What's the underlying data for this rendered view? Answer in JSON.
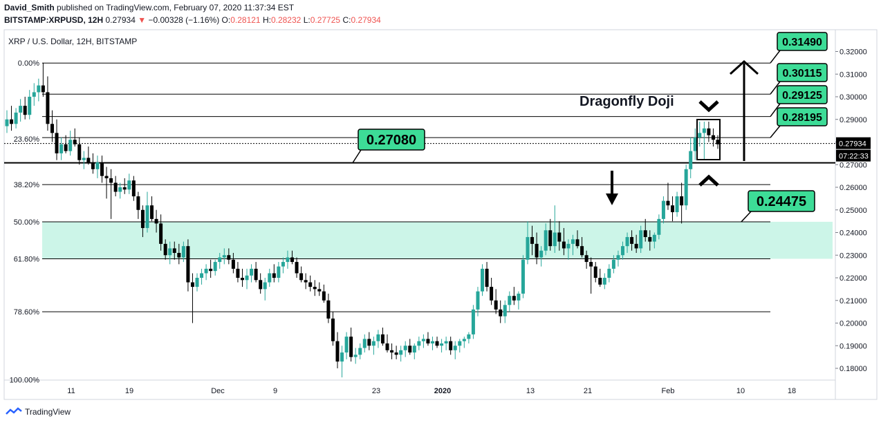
{
  "header": {
    "author": "David_Smith",
    "published": "published on TradingView.com, February 07, 2020 11:37:34 EST",
    "symbol": "BITSTAMP:XRPUSD, 12H",
    "last": "0.27934",
    "change_arrow": "▼",
    "change": "−0.00328 (−1.16%)",
    "o_label": "O:",
    "o": "0.28121",
    "h_label": "H:",
    "h": "0.28232",
    "l_label": "L:",
    "l": "0.27725",
    "c_label": "C:",
    "c": "0.27934"
  },
  "footer": {
    "brand": "TradingView",
    "logo_icon": "tradingview-logo-icon"
  },
  "chart_data": {
    "type": "candlestick",
    "title": "XRP / U.S. Dollar, 12H, BITSTAMP",
    "ylim": [
      0.175,
      0.3265
    ],
    "y_ticks": [
      "0.32000",
      "0.31000",
      "0.30000",
      "0.29000",
      "0.28000",
      "0.27000",
      "0.26000",
      "0.25000",
      "0.24000",
      "0.23000",
      "0.22000",
      "0.21000",
      "0.20000",
      "0.19000",
      "0.18000"
    ],
    "x_ticks": [
      "11",
      "19",
      "Dec",
      "9",
      "23",
      "2020",
      "13",
      "21",
      "Feb",
      "10",
      "18"
    ],
    "fib_levels": [
      {
        "label": "0.00%",
        "price": 0.3149
      },
      {
        "label": "23.60%",
        "price": 0.2813
      },
      {
        "label": "38.20%",
        "price": 0.2612
      },
      {
        "label": "50.00%",
        "price": 0.2448
      },
      {
        "label": "61.80%",
        "price": 0.2284
      },
      {
        "label": "78.60%",
        "price": 0.205
      },
      {
        "label": "100.00%",
        "price": 0.175
      }
    ],
    "horizontal_lines": [
      0.3149,
      0.30115,
      0.29125,
      0.28195,
      0.2708,
      0.2612,
      0.24475,
      0.2284,
      0.205
    ],
    "current_price_label": "0.27934",
    "countdown_label": "07:22:33",
    "support_zone": [
      0.2284,
      0.24475
    ],
    "price_labels": [
      "0.31490",
      "0.30115",
      "0.29125",
      "0.28195",
      "0.27080",
      "0.24475"
    ],
    "annotation": "Dragonfly Doji",
    "colors": {
      "up": "#26a69a",
      "down": "#000000",
      "zone": "#ccf5e8",
      "label_bg": "#3ddc97"
    },
    "ohlc": [
      [
        0.287,
        0.294,
        0.284,
        0.29
      ],
      [
        0.29,
        0.296,
        0.285,
        0.288
      ],
      [
        0.288,
        0.295,
        0.286,
        0.293
      ],
      [
        0.293,
        0.299,
        0.289,
        0.296
      ],
      [
        0.296,
        0.3,
        0.29,
        0.292
      ],
      [
        0.292,
        0.303,
        0.29,
        0.3
      ],
      [
        0.3,
        0.306,
        0.296,
        0.302
      ],
      [
        0.302,
        0.308,
        0.298,
        0.305
      ],
      [
        0.305,
        0.315,
        0.3,
        0.302
      ],
      [
        0.302,
        0.309,
        0.285,
        0.288
      ],
      [
        0.288,
        0.294,
        0.28,
        0.284
      ],
      [
        0.284,
        0.29,
        0.272,
        0.275
      ],
      [
        0.275,
        0.282,
        0.272,
        0.279
      ],
      [
        0.279,
        0.283,
        0.275,
        0.276
      ],
      [
        0.276,
        0.285,
        0.274,
        0.281
      ],
      [
        0.281,
        0.286,
        0.278,
        0.279
      ],
      [
        0.279,
        0.282,
        0.27,
        0.272
      ],
      [
        0.272,
        0.276,
        0.268,
        0.273
      ],
      [
        0.273,
        0.278,
        0.27,
        0.271
      ],
      [
        0.271,
        0.275,
        0.266,
        0.268
      ],
      [
        0.268,
        0.274,
        0.264,
        0.271
      ],
      [
        0.271,
        0.274,
        0.262,
        0.265
      ],
      [
        0.265,
        0.269,
        0.255,
        0.264
      ],
      [
        0.264,
        0.268,
        0.246,
        0.262
      ],
      [
        0.262,
        0.265,
        0.256,
        0.258
      ],
      [
        0.258,
        0.262,
        0.255,
        0.26
      ],
      [
        0.26,
        0.264,
        0.257,
        0.259
      ],
      [
        0.259,
        0.266,
        0.257,
        0.263
      ],
      [
        0.263,
        0.265,
        0.254,
        0.256
      ],
      [
        0.256,
        0.258,
        0.246,
        0.25
      ],
      [
        0.25,
        0.252,
        0.238,
        0.242
      ],
      [
        0.242,
        0.258,
        0.24,
        0.252
      ],
      [
        0.252,
        0.256,
        0.245,
        0.246
      ],
      [
        0.246,
        0.25,
        0.24,
        0.244
      ],
      [
        0.244,
        0.248,
        0.232,
        0.235
      ],
      [
        0.235,
        0.237,
        0.228,
        0.23
      ],
      [
        0.23,
        0.236,
        0.226,
        0.233
      ],
      [
        0.233,
        0.236,
        0.228,
        0.231
      ],
      [
        0.231,
        0.235,
        0.226,
        0.229
      ],
      [
        0.229,
        0.236,
        0.227,
        0.234
      ],
      [
        0.234,
        0.237,
        0.214,
        0.218
      ],
      [
        0.218,
        0.222,
        0.2,
        0.216
      ],
      [
        0.216,
        0.222,
        0.214,
        0.22
      ],
      [
        0.22,
        0.224,
        0.217,
        0.222
      ],
      [
        0.222,
        0.226,
        0.219,
        0.224
      ],
      [
        0.224,
        0.228,
        0.22,
        0.223
      ],
      [
        0.223,
        0.228,
        0.221,
        0.227
      ],
      [
        0.227,
        0.231,
        0.224,
        0.229
      ],
      [
        0.229,
        0.233,
        0.226,
        0.23
      ],
      [
        0.23,
        0.233,
        0.226,
        0.228
      ],
      [
        0.228,
        0.231,
        0.222,
        0.224
      ],
      [
        0.224,
        0.227,
        0.218,
        0.22
      ],
      [
        0.22,
        0.224,
        0.216,
        0.219
      ],
      [
        0.219,
        0.224,
        0.215,
        0.221
      ],
      [
        0.221,
        0.226,
        0.218,
        0.224
      ],
      [
        0.224,
        0.227,
        0.218,
        0.219
      ],
      [
        0.219,
        0.222,
        0.213,
        0.215
      ],
      [
        0.215,
        0.22,
        0.21,
        0.218
      ],
      [
        0.218,
        0.224,
        0.216,
        0.222
      ],
      [
        0.222,
        0.226,
        0.218,
        0.22
      ],
      [
        0.22,
        0.227,
        0.218,
        0.225
      ],
      [
        0.225,
        0.229,
        0.222,
        0.227
      ],
      [
        0.227,
        0.232,
        0.224,
        0.229
      ],
      [
        0.229,
        0.232,
        0.226,
        0.227
      ],
      [
        0.227,
        0.229,
        0.22,
        0.222
      ],
      [
        0.222,
        0.225,
        0.218,
        0.219
      ],
      [
        0.219,
        0.222,
        0.215,
        0.218
      ],
      [
        0.218,
        0.221,
        0.214,
        0.216
      ],
      [
        0.216,
        0.219,
        0.212,
        0.215
      ],
      [
        0.215,
        0.218,
        0.212,
        0.214
      ],
      [
        0.214,
        0.217,
        0.209,
        0.21
      ],
      [
        0.21,
        0.213,
        0.2,
        0.202
      ],
      [
        0.202,
        0.205,
        0.19,
        0.192
      ],
      [
        0.192,
        0.196,
        0.18,
        0.183
      ],
      [
        0.183,
        0.19,
        0.176,
        0.187
      ],
      [
        0.187,
        0.196,
        0.184,
        0.194
      ],
      [
        0.194,
        0.198,
        0.183,
        0.185
      ],
      [
        0.185,
        0.189,
        0.182,
        0.186
      ],
      [
        0.186,
        0.191,
        0.184,
        0.189
      ],
      [
        0.189,
        0.195,
        0.187,
        0.193
      ],
      [
        0.193,
        0.196,
        0.188,
        0.19
      ],
      [
        0.19,
        0.194,
        0.186,
        0.192
      ],
      [
        0.192,
        0.197,
        0.189,
        0.195
      ],
      [
        0.195,
        0.198,
        0.19,
        0.191
      ],
      [
        0.191,
        0.195,
        0.187,
        0.188
      ],
      [
        0.188,
        0.191,
        0.184,
        0.187
      ],
      [
        0.187,
        0.19,
        0.184,
        0.186
      ],
      [
        0.186,
        0.19,
        0.183,
        0.188
      ],
      [
        0.188,
        0.192,
        0.185,
        0.19
      ],
      [
        0.19,
        0.193,
        0.186,
        0.187
      ],
      [
        0.187,
        0.191,
        0.184,
        0.19
      ],
      [
        0.19,
        0.194,
        0.188,
        0.192
      ],
      [
        0.192,
        0.195,
        0.189,
        0.193
      ],
      [
        0.193,
        0.196,
        0.19,
        0.191
      ],
      [
        0.191,
        0.194,
        0.188,
        0.192
      ],
      [
        0.192,
        0.194,
        0.189,
        0.19
      ],
      [
        0.19,
        0.193,
        0.187,
        0.191
      ],
      [
        0.191,
        0.194,
        0.188,
        0.192
      ],
      [
        0.192,
        0.194,
        0.186,
        0.188
      ],
      [
        0.188,
        0.192,
        0.184,
        0.19
      ],
      [
        0.19,
        0.193,
        0.187,
        0.192
      ],
      [
        0.192,
        0.194,
        0.189,
        0.193
      ],
      [
        0.193,
        0.196,
        0.191,
        0.195
      ],
      [
        0.195,
        0.208,
        0.193,
        0.206
      ],
      [
        0.206,
        0.216,
        0.203,
        0.214
      ],
      [
        0.214,
        0.226,
        0.212,
        0.224
      ],
      [
        0.224,
        0.227,
        0.214,
        0.216
      ],
      [
        0.216,
        0.22,
        0.208,
        0.21
      ],
      [
        0.21,
        0.215,
        0.204,
        0.206
      ],
      [
        0.206,
        0.21,
        0.2,
        0.203
      ],
      [
        0.203,
        0.21,
        0.2,
        0.208
      ],
      [
        0.208,
        0.214,
        0.205,
        0.212
      ],
      [
        0.212,
        0.216,
        0.208,
        0.21
      ],
      [
        0.21,
        0.214,
        0.206,
        0.213
      ],
      [
        0.213,
        0.23,
        0.211,
        0.228
      ],
      [
        0.228,
        0.245,
        0.226,
        0.238
      ],
      [
        0.238,
        0.243,
        0.23,
        0.235
      ],
      [
        0.235,
        0.24,
        0.226,
        0.229
      ],
      [
        0.229,
        0.234,
        0.225,
        0.232
      ],
      [
        0.232,
        0.244,
        0.23,
        0.241
      ],
      [
        0.241,
        0.246,
        0.232,
        0.234
      ],
      [
        0.234,
        0.252,
        0.231,
        0.24
      ],
      [
        0.24,
        0.245,
        0.232,
        0.236
      ],
      [
        0.236,
        0.242,
        0.23,
        0.233
      ],
      [
        0.233,
        0.237,
        0.228,
        0.235
      ],
      [
        0.235,
        0.239,
        0.23,
        0.237
      ],
      [
        0.237,
        0.241,
        0.233,
        0.234
      ],
      [
        0.234,
        0.238,
        0.229,
        0.23
      ],
      [
        0.23,
        0.232,
        0.224,
        0.227
      ],
      [
        0.227,
        0.229,
        0.213,
        0.225
      ],
      [
        0.225,
        0.227,
        0.218,
        0.22
      ],
      [
        0.22,
        0.224,
        0.216,
        0.217
      ],
      [
        0.217,
        0.222,
        0.215,
        0.22
      ],
      [
        0.22,
        0.226,
        0.218,
        0.224
      ],
      [
        0.224,
        0.23,
        0.222,
        0.228
      ],
      [
        0.228,
        0.232,
        0.225,
        0.23
      ],
      [
        0.23,
        0.236,
        0.228,
        0.234
      ],
      [
        0.234,
        0.24,
        0.231,
        0.238
      ],
      [
        0.238,
        0.241,
        0.232,
        0.235
      ],
      [
        0.235,
        0.239,
        0.231,
        0.233
      ],
      [
        0.233,
        0.243,
        0.231,
        0.241
      ],
      [
        0.241,
        0.246,
        0.236,
        0.238
      ],
      [
        0.238,
        0.241,
        0.232,
        0.236
      ],
      [
        0.236,
        0.24,
        0.233,
        0.239
      ],
      [
        0.239,
        0.248,
        0.237,
        0.246
      ],
      [
        0.246,
        0.256,
        0.244,
        0.254
      ],
      [
        0.254,
        0.262,
        0.25,
        0.252
      ],
      [
        0.252,
        0.256,
        0.245,
        0.249
      ],
      [
        0.249,
        0.258,
        0.247,
        0.256
      ],
      [
        0.256,
        0.262,
        0.244,
        0.252
      ],
      [
        0.252,
        0.27,
        0.25,
        0.268
      ],
      [
        0.268,
        0.282,
        0.264,
        0.276
      ],
      [
        0.276,
        0.286,
        0.272,
        0.282
      ],
      [
        0.282,
        0.289,
        0.278,
        0.284
      ],
      [
        0.284,
        0.289,
        0.272,
        0.286
      ],
      [
        0.286,
        0.289,
        0.28,
        0.283
      ],
      [
        0.283,
        0.286,
        0.278,
        0.281
      ],
      [
        0.281,
        0.283,
        0.277,
        0.279
      ]
    ]
  }
}
